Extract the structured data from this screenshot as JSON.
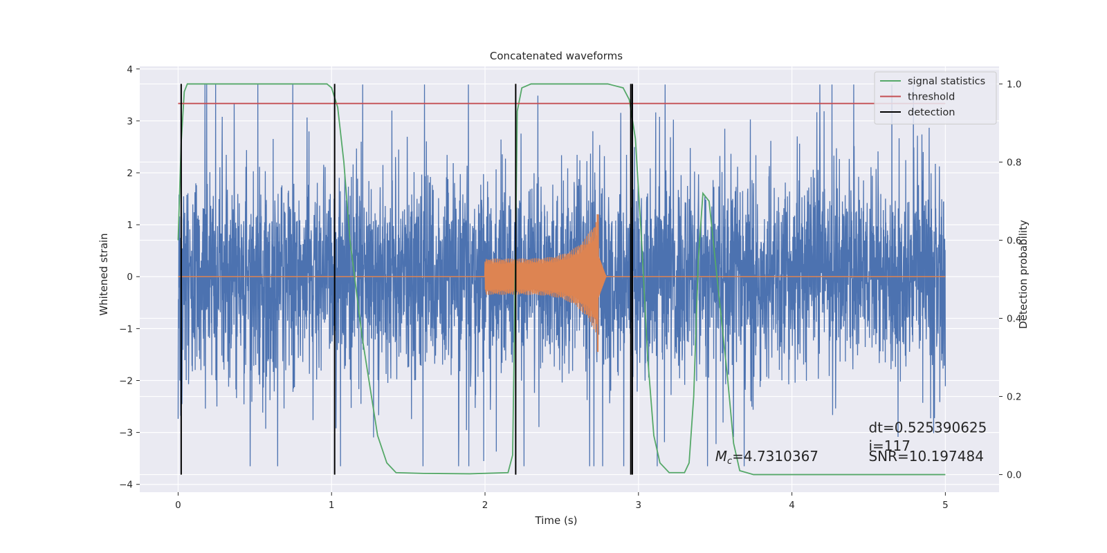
{
  "chart_data": {
    "type": "line",
    "title": "Concatenated waveforms",
    "xlabel": "Time (s)",
    "ylabel": "Whitened strain",
    "y2label": "Detection probability",
    "xlim": [
      -0.25,
      5.35
    ],
    "ylim": [
      -4.15,
      4.05
    ],
    "y2lim": [
      -0.045,
      1.045
    ],
    "xticks": [
      "0",
      "1",
      "2",
      "3",
      "4",
      "5"
    ],
    "yticks": [
      "4",
      "3",
      "2",
      "1",
      "0",
      "−1",
      "−2",
      "−3",
      "−4"
    ],
    "y2ticks": [
      "1.0",
      "0.8",
      "0.6",
      "0.4",
      "0.2",
      "0.0"
    ],
    "grid": true,
    "legend_position": "top-right",
    "background": "#eaeaf2",
    "series": [
      {
        "key": "strain",
        "axis": "left",
        "color": "#4c72b0",
        "noise_seed": 117,
        "x_range": [
          0,
          5
        ],
        "envelope": {
          "typical": 1.2,
          "peak_max": 3.7,
          "peak_min": -3.65
        }
      },
      {
        "key": "waveform",
        "axis": "left",
        "color": "#dd8452",
        "x_range": [
          0,
          5
        ],
        "chirp_start": 2.0,
        "chirp_end": 2.74,
        "amp_start": 0.35,
        "amp_peak_pos": 1.2,
        "amp_peak_neg": -1.45
      },
      {
        "name": "signal statistics",
        "axis": "right",
        "color": "#55a868",
        "x": [
          0.0,
          0.02,
          0.04,
          0.06,
          0.1,
          0.2,
          0.9,
          0.97,
          1.0,
          1.04,
          1.08,
          1.12,
          1.2,
          1.3,
          1.36,
          1.42,
          1.6,
          1.9,
          2.15,
          2.18,
          2.2,
          2.21,
          2.24,
          2.3,
          2.8,
          2.9,
          2.94,
          2.98,
          3.02,
          3.06,
          3.1,
          3.14,
          3.2,
          3.3,
          3.33,
          3.36,
          3.39,
          3.42,
          3.46,
          3.5,
          3.54,
          3.58,
          3.62,
          3.66,
          3.75,
          4.0,
          5.0
        ],
        "values": [
          0.6,
          0.85,
          0.98,
          1.0,
          1.0,
          1.0,
          1.0,
          1.0,
          0.99,
          0.94,
          0.8,
          0.6,
          0.35,
          0.1,
          0.03,
          0.005,
          0.003,
          0.002,
          0.005,
          0.05,
          0.6,
          0.93,
          0.99,
          1.0,
          1.0,
          0.99,
          0.96,
          0.86,
          0.6,
          0.3,
          0.1,
          0.03,
          0.005,
          0.005,
          0.03,
          0.2,
          0.55,
          0.72,
          0.7,
          0.55,
          0.4,
          0.25,
          0.08,
          0.01,
          0.0,
          0.0,
          0.0
        ]
      },
      {
        "name": "threshold",
        "axis": "right",
        "color": "#c44e52",
        "x": [
          0.0,
          5.0
        ],
        "values": [
          0.95,
          0.95
        ]
      },
      {
        "name": "detection",
        "axis": "right",
        "color": "#000000",
        "type": "vlines",
        "x": [
          0.02,
          1.02,
          2.2,
          2.95,
          2.96
        ],
        "y_range": [
          0.0,
          1.0
        ]
      }
    ],
    "annotations": [
      {
        "text": "dt=0.525390625",
        "x": 4.5,
        "y": -3.0
      },
      {
        "text": " i=117",
        "x": 4.5,
        "y": -3.35
      },
      {
        "text": "SNR=10.197484",
        "x": 4.5,
        "y": -3.55
      },
      {
        "text": "M_c=4.7310367",
        "x": 3.5,
        "y": -3.55
      }
    ]
  }
}
